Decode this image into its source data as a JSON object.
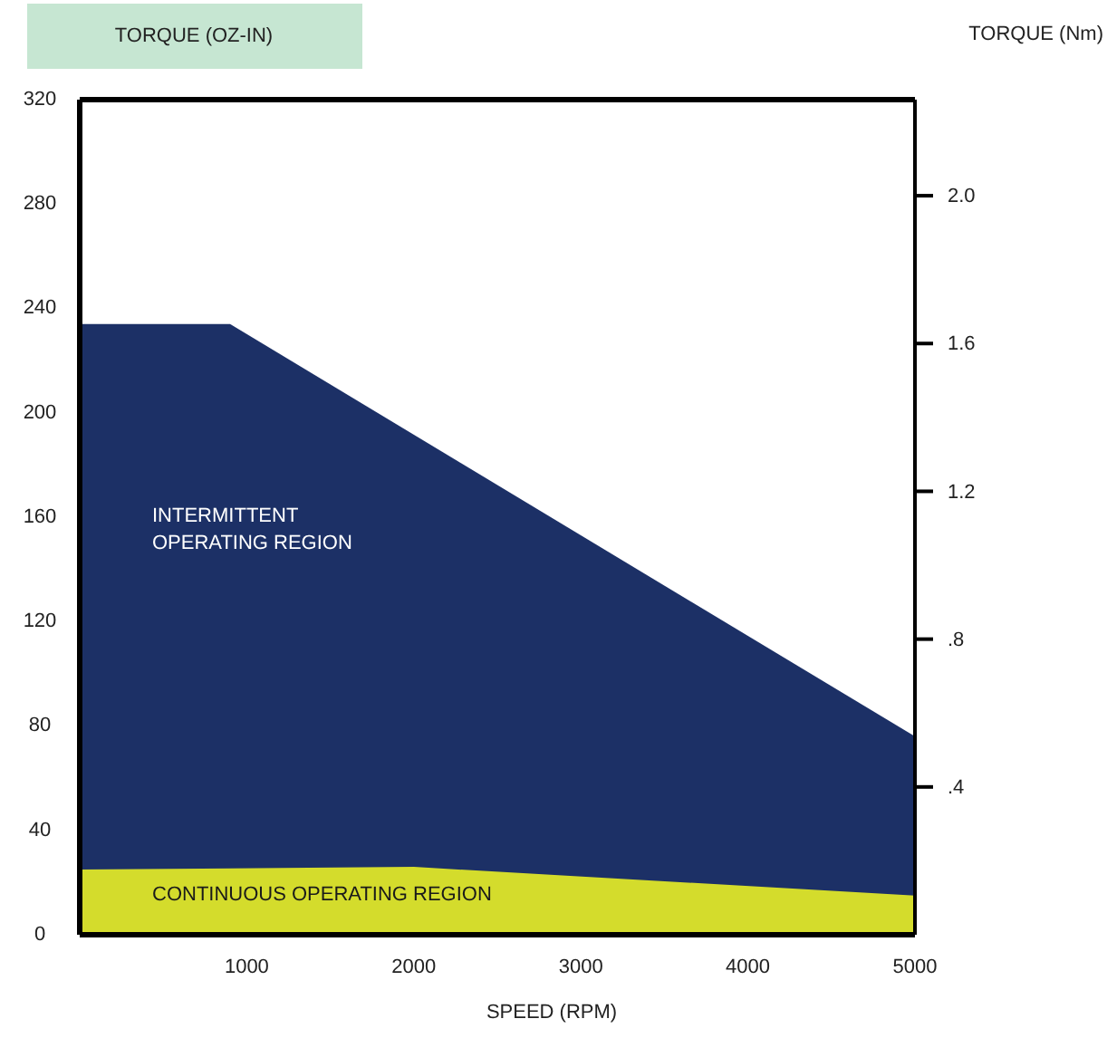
{
  "chart_data": {
    "type": "area",
    "xlabel": "SPEED (RPM)",
    "ylabel": "TORQUE (OZ-IN)",
    "y2label": "TORQUE (Nm)",
    "xlim": [
      0,
      5000
    ],
    "xticks": [
      1000,
      2000,
      3000,
      4000,
      5000
    ],
    "ylim": [
      0,
      320
    ],
    "yticks": [
      0,
      40,
      80,
      120,
      160,
      200,
      240,
      280,
      320
    ],
    "y2lim": [
      0,
      2.26
    ],
    "y2ticks": [
      {
        "value": 0.4,
        "label": ".4"
      },
      {
        "value": 0.8,
        "label": ".8"
      },
      {
        "value": 1.2,
        "label": "1.2"
      },
      {
        "value": 1.6,
        "label": "1.6"
      },
      {
        "value": 2.0,
        "label": "2.0"
      }
    ],
    "series": [
      {
        "color": "#1c3066",
        "x": [
          0,
          900,
          5000
        ],
        "values": [
          234,
          234,
          76
        ]
      },
      {
        "color": "#d4dc2c",
        "x": [
          0,
          2000,
          5000
        ],
        "values": [
          25,
          26,
          15
        ]
      }
    ],
    "annotations": [
      "INTERMITTENT\nOPERATING REGION",
      "CONTINUOUS  OPERATING REGION"
    ],
    "grid": false
  }
}
